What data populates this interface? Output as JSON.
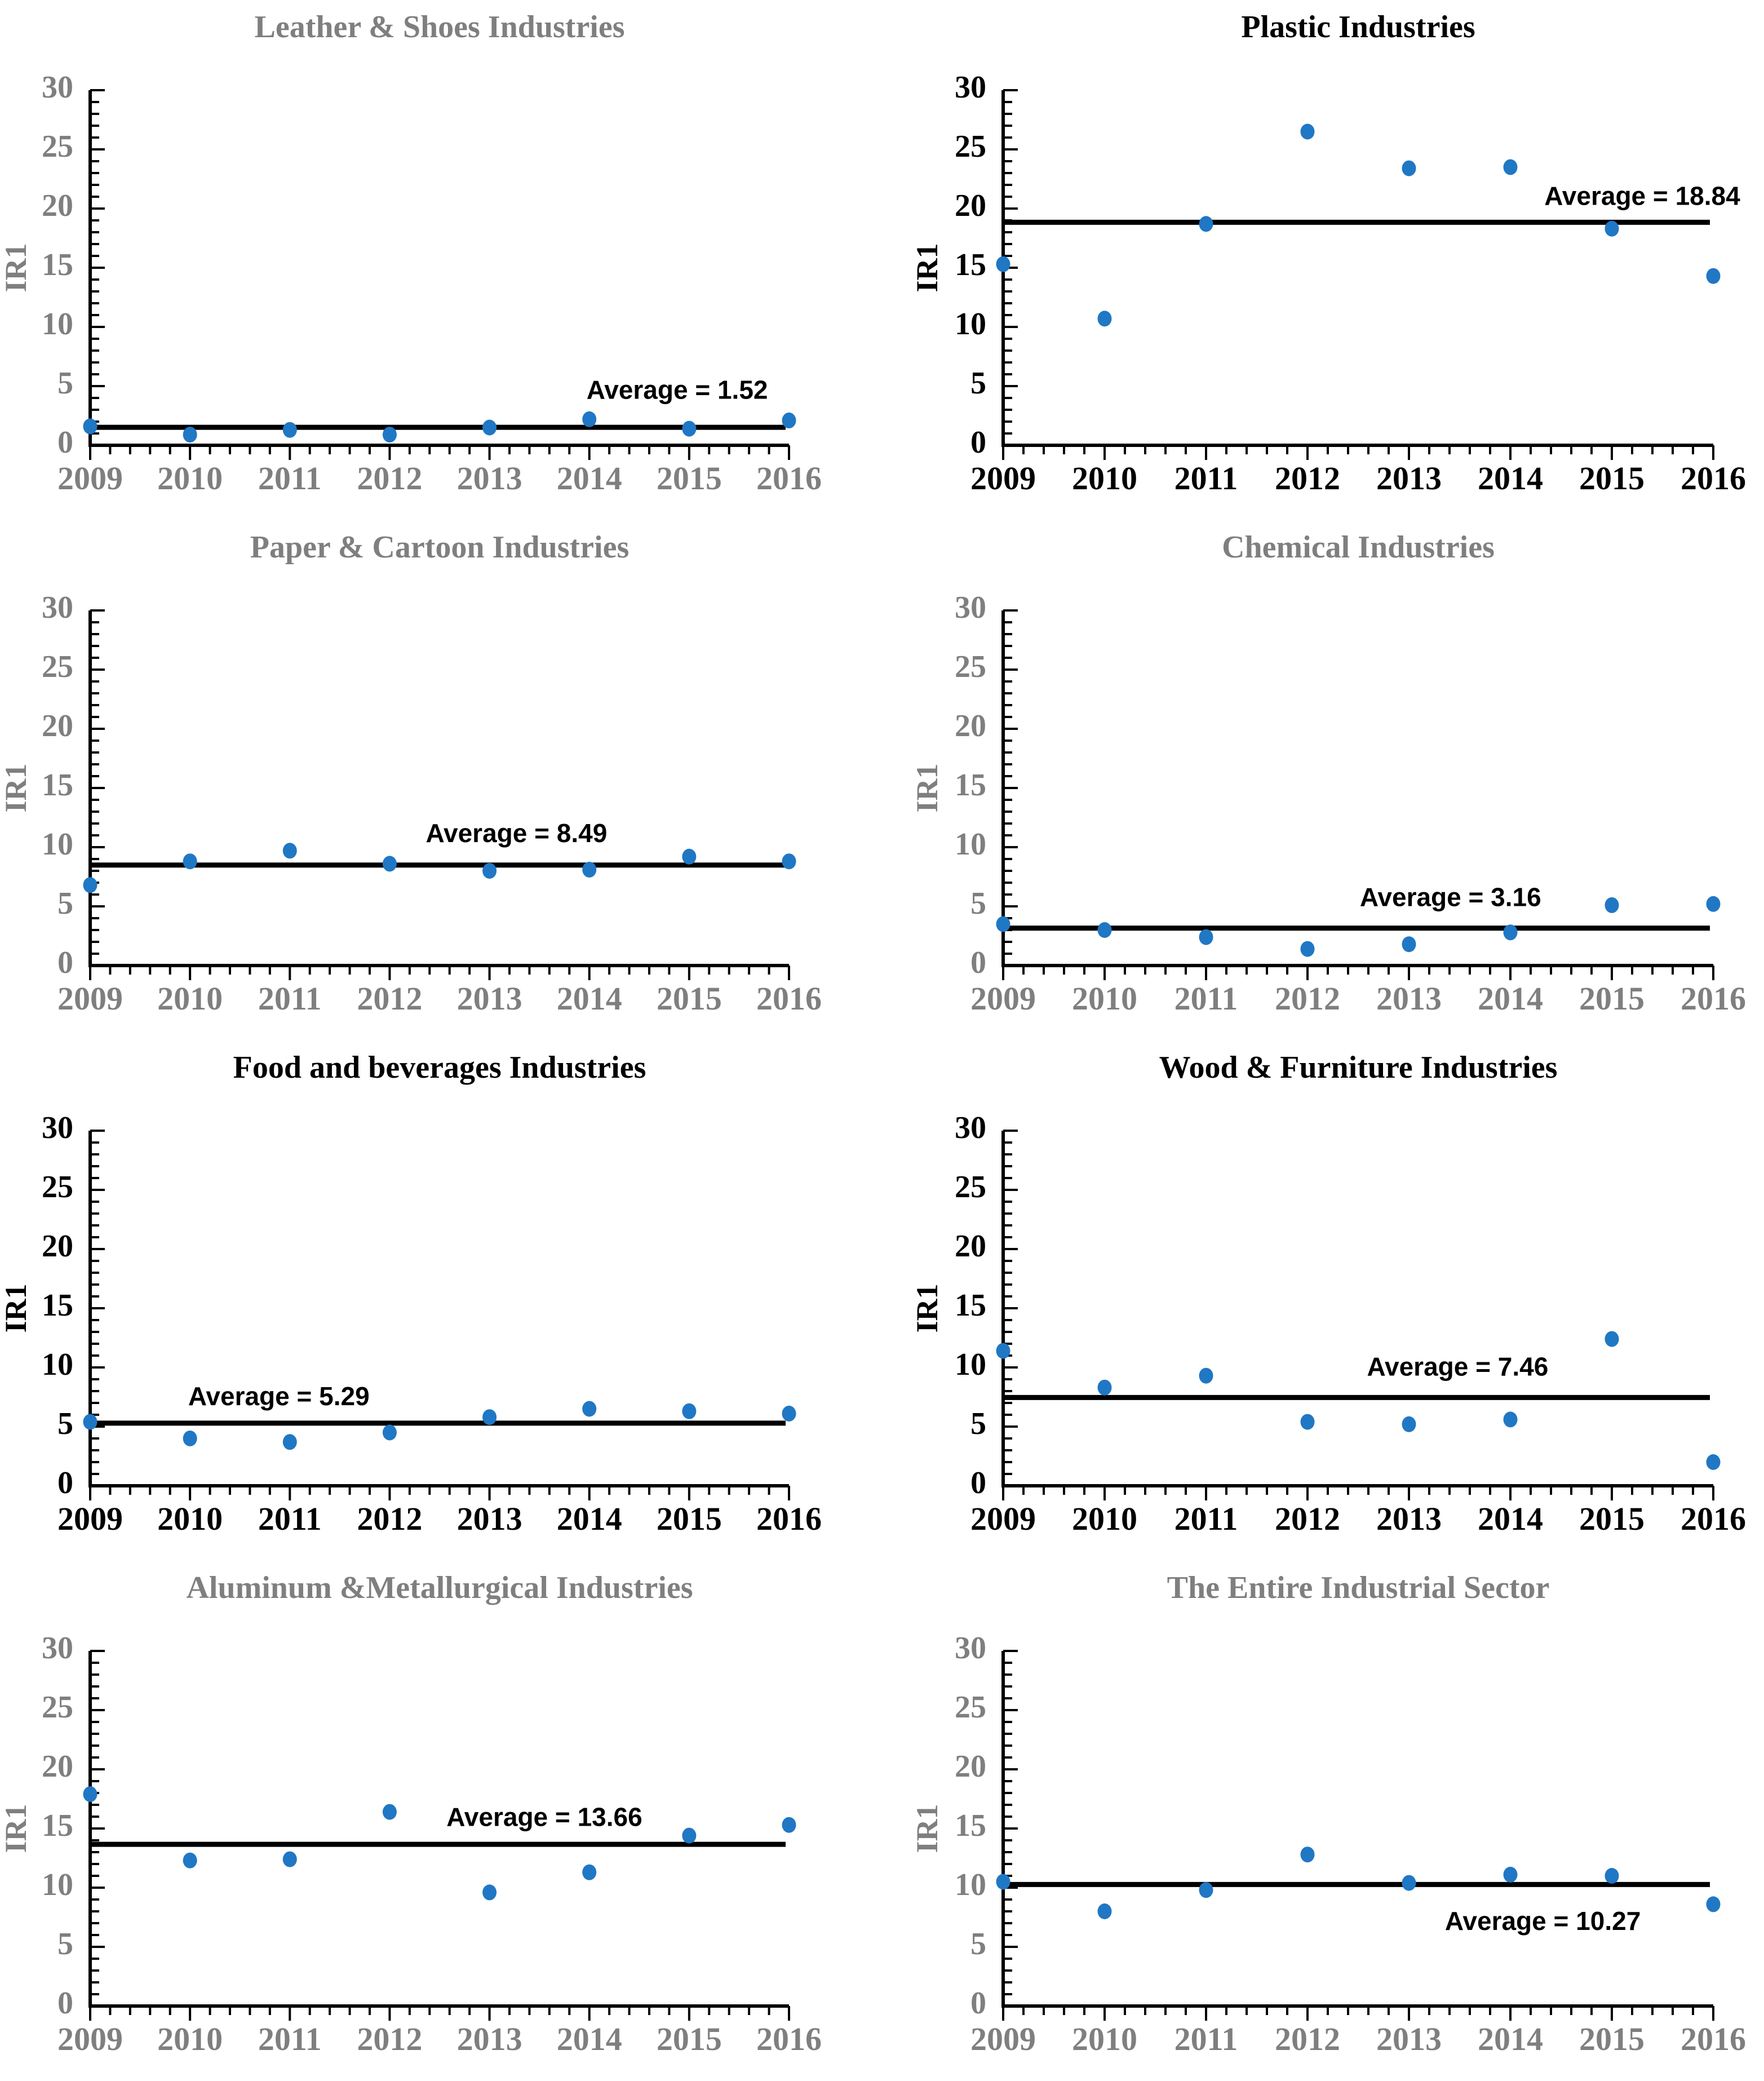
{
  "colors": {
    "point": "#2077C4",
    "black": "#000000",
    "gray": "#7F7F7F"
  },
  "ylabel": "IR1",
  "years": [
    2009,
    2010,
    2011,
    2012,
    2013,
    2014,
    2015,
    2016
  ],
  "chart_data": [
    {
      "type": "scatter",
      "slug": "leather-shoes",
      "title": "Leather & Shoes Industries",
      "scheme": "gray",
      "ylabel": "IR1",
      "ylim": [
        0,
        30
      ],
      "yticks": [
        0,
        5,
        10,
        15,
        20,
        25,
        30
      ],
      "x": [
        2009,
        2010,
        2011,
        2012,
        2013,
        2014,
        2015,
        2016
      ],
      "values": [
        1.6,
        0.9,
        1.3,
        0.9,
        1.5,
        2.2,
        1.4,
        2.1
      ],
      "average": 1.52,
      "average_label": "Average = 1.52",
      "label_x_frac": 0.84,
      "label_y": 4.5,
      "grid": false,
      "legend": "none"
    },
    {
      "type": "scatter",
      "slug": "plastic",
      "title": "Plastic Industries",
      "scheme": "black",
      "ylabel": "IR1",
      "ylim": [
        0,
        30
      ],
      "yticks": [
        0,
        5,
        10,
        15,
        20,
        25,
        30
      ],
      "x": [
        2009,
        2010,
        2011,
        2012,
        2013,
        2014,
        2015,
        2016
      ],
      "values": [
        15.3,
        10.7,
        18.7,
        26.5,
        23.4,
        23.5,
        18.3,
        14.3
      ],
      "average": 18.84,
      "average_label": "Average = 18.84",
      "label_x_frac": 0.9,
      "label_y": 20.9,
      "grid": false,
      "legend": "none"
    },
    {
      "type": "scatter",
      "slug": "paper-cartoon",
      "title": "Paper & Cartoon Industries",
      "scheme": "gray",
      "ylabel": "IR1",
      "ylim": [
        0,
        30
      ],
      "yticks": [
        0,
        5,
        10,
        15,
        20,
        25,
        30
      ],
      "x": [
        2009,
        2010,
        2011,
        2012,
        2013,
        2014,
        2015,
        2016
      ],
      "values": [
        6.8,
        8.8,
        9.7,
        8.6,
        8.0,
        8.1,
        9.2,
        8.8
      ],
      "average": 8.49,
      "average_label": "Average = 8.49",
      "label_x_frac": 0.61,
      "label_y": 11.0,
      "grid": false,
      "legend": "none"
    },
    {
      "type": "scatter",
      "slug": "chemical",
      "title": "Chemical Industries",
      "scheme": "gray",
      "ylabel": "IR1",
      "ylim": [
        0,
        30
      ],
      "yticks": [
        0,
        5,
        10,
        15,
        20,
        25,
        30
      ],
      "x": [
        2009,
        2010,
        2011,
        2012,
        2013,
        2014,
        2015,
        2016
      ],
      "values": [
        3.5,
        3.0,
        2.4,
        1.4,
        1.8,
        2.8,
        5.1,
        5.2
      ],
      "average": 3.16,
      "average_label": "Average = 3.16",
      "label_x_frac": 0.63,
      "label_y": 5.6,
      "grid": false,
      "legend": "none"
    },
    {
      "type": "scatter",
      "slug": "food-beverages",
      "title": "Food and beverages Industries",
      "scheme": "black",
      "ylabel": "IR1",
      "ylim": [
        0,
        30
      ],
      "yticks": [
        0,
        5,
        10,
        15,
        20,
        25,
        30
      ],
      "x": [
        2009,
        2010,
        2011,
        2012,
        2013,
        2014,
        2015,
        2016
      ],
      "values": [
        5.4,
        4.0,
        3.7,
        4.5,
        5.8,
        6.5,
        6.3,
        6.1
      ],
      "average": 5.29,
      "average_label": "Average = 5.29",
      "label_x_frac": 0.27,
      "label_y": 7.4,
      "grid": false,
      "legend": "none"
    },
    {
      "type": "scatter",
      "slug": "wood-furniture",
      "title": "Wood & Furniture Industries",
      "scheme": "black",
      "ylabel": "IR1",
      "ylim": [
        0,
        30
      ],
      "yticks": [
        0,
        5,
        10,
        15,
        20,
        25,
        30
      ],
      "x": [
        2009,
        2010,
        2011,
        2012,
        2013,
        2014,
        2015,
        2016
      ],
      "values": [
        11.4,
        8.3,
        9.3,
        5.4,
        5.2,
        5.6,
        12.4,
        2.0
      ],
      "average": 7.46,
      "average_label": "Average = 7.46",
      "label_x_frac": 0.64,
      "label_y": 9.9,
      "grid": false,
      "legend": "none"
    },
    {
      "type": "scatter",
      "slug": "aluminum-metallurgical",
      "title": "Aluminum &Metallurgical Industries",
      "scheme": "gray",
      "ylabel": "IR1",
      "ylim": [
        0,
        30
      ],
      "yticks": [
        0,
        5,
        10,
        15,
        20,
        25,
        30
      ],
      "x": [
        2009,
        2010,
        2011,
        2012,
        2013,
        2014,
        2015,
        2016
      ],
      "values": [
        17.9,
        12.3,
        12.4,
        16.4,
        9.6,
        11.3,
        14.4,
        15.3
      ],
      "average": 13.66,
      "average_label": "Average = 13.66",
      "label_x_frac": 0.65,
      "label_y": 15.8,
      "grid": false,
      "legend": "none"
    },
    {
      "type": "scatter",
      "slug": "entire-industrial-sector",
      "title": "The Entire Industrial Sector",
      "scheme": "gray",
      "ylabel": "IR1",
      "ylim": [
        0,
        30
      ],
      "yticks": [
        0,
        5,
        10,
        15,
        20,
        25,
        30
      ],
      "x": [
        2009,
        2010,
        2011,
        2012,
        2013,
        2014,
        2015,
        2016
      ],
      "values": [
        10.5,
        8.0,
        9.8,
        12.8,
        10.4,
        11.1,
        11.0,
        8.6
      ],
      "average": 10.27,
      "average_label": "Average = 10.27",
      "label_x_frac": 0.76,
      "label_y": 7.0,
      "grid": false,
      "legend": "none"
    }
  ]
}
